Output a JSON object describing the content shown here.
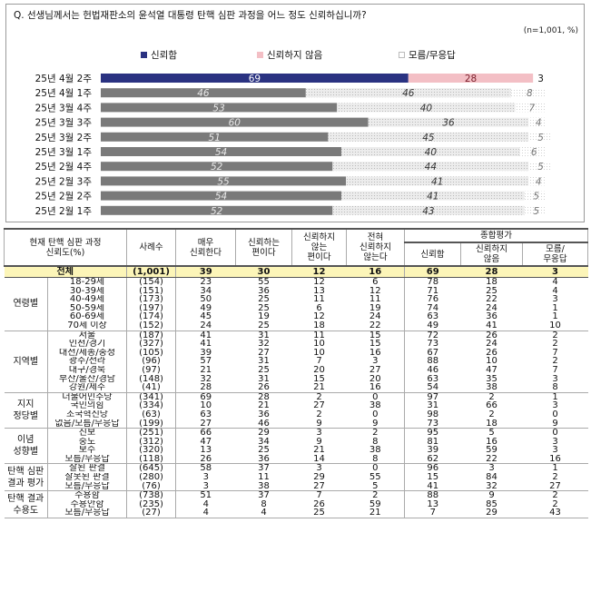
{
  "question": "Q. 선생님께서는 헌법재판소의 윤석열 대통령 탄핵 심판 과정을 어느 정도 신뢰하십니까?",
  "sample_note": "(n=1,001, %)",
  "colors": {
    "trust": "#2a3281",
    "distrust": "#f3bfc5",
    "unknown": "#ffffff",
    "past_trust": "#7a7a7a",
    "past_distrust": "#dedede"
  },
  "chart_data": {
    "type": "bar",
    "stacked": true,
    "orientation": "horizontal",
    "xlim": [
      0,
      100
    ],
    "categories": [
      "25년 4월 2주",
      "25년 4월 1주",
      "25년 3월 4주",
      "25년 3월 3주",
      "25년 3월 2주",
      "25년 3월 1주",
      "25년 2월 4주",
      "25년 2월 3주",
      "25년 2월 2주",
      "25년 2월 1주"
    ],
    "series": [
      {
        "name": "신뢰함",
        "values": [
          69,
          46,
          53,
          60,
          51,
          54,
          52,
          55,
          54,
          52
        ]
      },
      {
        "name": "신뢰하지 않음",
        "values": [
          28,
          46,
          40,
          36,
          45,
          40,
          44,
          41,
          41,
          43
        ]
      },
      {
        "name": "모름/무응답",
        "values": [
          3,
          8,
          7,
          4,
          5,
          6,
          5,
          4,
          5,
          5
        ]
      }
    ]
  },
  "table": {
    "headers": {
      "category": "현재 탄핵 심판 과정\n신뢰도(%)",
      "cases": "사례수",
      "c1": "매우\n신뢰한다",
      "c2": "신뢰하는\n편이다",
      "c3": "신뢰하지\n않는\n편이다",
      "c4": "전혀\n신뢰하지\n않는다",
      "overall": "종합평가",
      "c5": "신뢰함",
      "c6": "신뢰하지\n않음",
      "c7": "모름/\n무응답"
    },
    "total": {
      "label": "전체",
      "cases": "(1,001)",
      "values": [
        "39",
        "30",
        "12",
        "16",
        "69",
        "28",
        "3"
      ]
    },
    "groups": [
      {
        "name": "연령별",
        "rows": [
          {
            "label": "18-29세",
            "cases": "(154)",
            "values": [
              "23",
              "55",
              "12",
              "6",
              "78",
              "18",
              "4"
            ]
          },
          {
            "label": "30-39세",
            "cases": "(151)",
            "values": [
              "34",
              "36",
              "13",
              "12",
              "71",
              "25",
              "4"
            ]
          },
          {
            "label": "40-49세",
            "cases": "(173)",
            "values": [
              "50",
              "25",
              "11",
              "11",
              "76",
              "22",
              "3"
            ]
          },
          {
            "label": "50-59세",
            "cases": "(197)",
            "values": [
              "49",
              "25",
              "6",
              "19",
              "74",
              "24",
              "1"
            ]
          },
          {
            "label": "60-69세",
            "cases": "(174)",
            "values": [
              "45",
              "19",
              "12",
              "24",
              "63",
              "36",
              "1"
            ]
          },
          {
            "label": "70세 이상",
            "cases": "(152)",
            "values": [
              "24",
              "25",
              "18",
              "22",
              "49",
              "41",
              "10"
            ]
          }
        ]
      },
      {
        "name": "지역별",
        "rows": [
          {
            "label": "서울",
            "cases": "(187)",
            "values": [
              "41",
              "31",
              "11",
              "15",
              "72",
              "26",
              "2"
            ]
          },
          {
            "label": "인천/경기",
            "cases": "(327)",
            "values": [
              "41",
              "32",
              "10",
              "15",
              "73",
              "24",
              "2"
            ]
          },
          {
            "label": "대전/세종/충청",
            "cases": "(105)",
            "values": [
              "39",
              "27",
              "10",
              "16",
              "67",
              "26",
              "7"
            ]
          },
          {
            "label": "광주/전라",
            "cases": "(96)",
            "values": [
              "57",
              "31",
              "7",
              "3",
              "88",
              "10",
              "2"
            ]
          },
          {
            "label": "대구/경북",
            "cases": "(97)",
            "values": [
              "21",
              "25",
              "20",
              "27",
              "46",
              "47",
              "7"
            ]
          },
          {
            "label": "부산/울산/경남",
            "cases": "(148)",
            "values": [
              "32",
              "31",
              "15",
              "20",
              "63",
              "35",
              "3"
            ]
          },
          {
            "label": "강원/제주",
            "cases": "(41)",
            "values": [
              "28",
              "26",
              "21",
              "16",
              "54",
              "38",
              "8"
            ]
          }
        ]
      },
      {
        "name": "지지\n정당별",
        "rows": [
          {
            "label": "더불어민주당",
            "cases": "(341)",
            "values": [
              "69",
              "28",
              "2",
              "0",
              "97",
              "2",
              "1"
            ]
          },
          {
            "label": "국민의힘",
            "cases": "(334)",
            "values": [
              "10",
              "21",
              "27",
              "38",
              "31",
              "66",
              "3"
            ]
          },
          {
            "label": "조국혁신당",
            "cases": "(63)",
            "values": [
              "63",
              "36",
              "2",
              "0",
              "98",
              "2",
              "0"
            ]
          },
          {
            "label": "없음/모름/무응답",
            "cases": "(199)",
            "values": [
              "27",
              "46",
              "9",
              "9",
              "73",
              "18",
              "9"
            ]
          }
        ]
      },
      {
        "name": "이념\n성향별",
        "rows": [
          {
            "label": "진보",
            "cases": "(251)",
            "values": [
              "66",
              "29",
              "3",
              "2",
              "95",
              "5",
              "0"
            ]
          },
          {
            "label": "중도",
            "cases": "(312)",
            "values": [
              "47",
              "34",
              "9",
              "8",
              "81",
              "16",
              "3"
            ]
          },
          {
            "label": "보수",
            "cases": "(320)",
            "values": [
              "13",
              "25",
              "21",
              "38",
              "39",
              "59",
              "3"
            ]
          },
          {
            "label": "모름/무응답",
            "cases": "(118)",
            "values": [
              "26",
              "36",
              "14",
              "8",
              "62",
              "22",
              "16"
            ]
          }
        ]
      },
      {
        "name": "탄핵 심판\n결과 평가",
        "rows": [
          {
            "label": "잘된 판결",
            "cases": "(645)",
            "values": [
              "58",
              "37",
              "3",
              "0",
              "96",
              "3",
              "1"
            ]
          },
          {
            "label": "잘못된 판결",
            "cases": "(280)",
            "values": [
              "3",
              "11",
              "29",
              "55",
              "15",
              "84",
              "2"
            ]
          },
          {
            "label": "모름/무응답",
            "cases": "(76)",
            "values": [
              "3",
              "38",
              "27",
              "5",
              "41",
              "32",
              "27"
            ]
          }
        ]
      },
      {
        "name": "탄핵 결과\n수용도",
        "rows": [
          {
            "label": "수용함",
            "cases": "(738)",
            "values": [
              "51",
              "37",
              "7",
              "2",
              "88",
              "9",
              "2"
            ]
          },
          {
            "label": "수용안함",
            "cases": "(235)",
            "values": [
              "4",
              "8",
              "26",
              "59",
              "13",
              "85",
              "2"
            ]
          },
          {
            "label": "모름/무응답",
            "cases": "(27)",
            "values": [
              "4",
              "4",
              "25",
              "21",
              "7",
              "29",
              "43"
            ]
          }
        ]
      }
    ]
  }
}
